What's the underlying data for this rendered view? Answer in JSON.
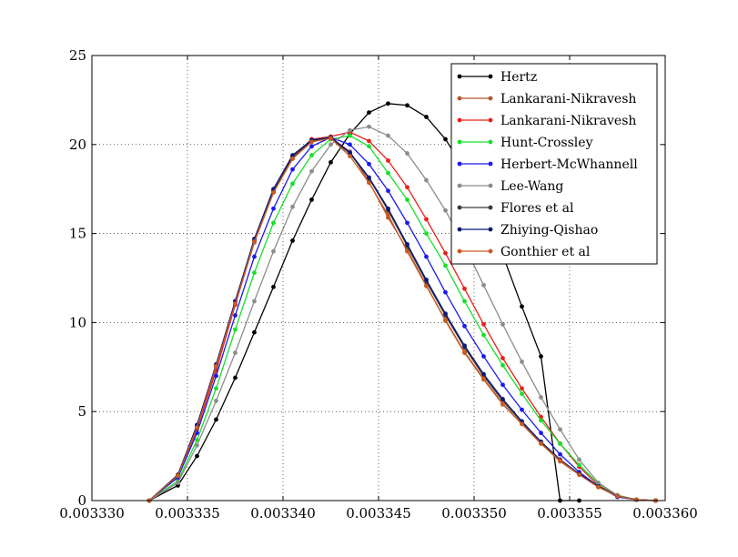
{
  "chart_data": {
    "type": "line",
    "title": "",
    "xlabel": "",
    "ylabel": "",
    "xlim": [
      0.00333,
      0.00336
    ],
    "ylim": [
      0,
      25
    ],
    "x_ticks": [
      0.00333,
      0.003335,
      0.00334,
      0.003345,
      0.00335,
      0.003355,
      0.00336
    ],
    "x_tick_labels": [
      "0.003330",
      "0.003335",
      "0.003340",
      "0.003345",
      "0.003350",
      "0.003355",
      "0.003360"
    ],
    "y_ticks": [
      0,
      5,
      10,
      15,
      20,
      25
    ],
    "y_tick_labels": [
      "0",
      "5",
      "10",
      "15",
      "20",
      "25"
    ],
    "grid": true,
    "legend_position": "top-right",
    "x": [
      0.003333,
      0.0033345,
      0.0033355,
      0.0033365,
      0.0033375,
      0.0033385,
      0.0033395,
      0.0033405,
      0.0033415,
      0.0033425,
      0.0033435,
      0.0033445,
      0.0033455,
      0.0033465,
      0.0033475,
      0.0033485,
      0.0033495,
      0.0033505,
      0.0033515,
      0.0033525,
      0.0033535,
      0.0033545,
      0.0033555,
      0.0033565,
      0.0033575,
      0.0033585,
      0.0033595
    ],
    "series": [
      {
        "name": "Hertz",
        "color": "#000000",
        "values": [
          0,
          0.85,
          2.5,
          4.55,
          6.9,
          9.45,
          12.0,
          14.6,
          16.9,
          19.0,
          20.6,
          21.8,
          22.3,
          22.2,
          21.55,
          20.3,
          18.6,
          16.4,
          13.8,
          10.9,
          8.1,
          0,
          0,
          null,
          null,
          null,
          null
        ]
      },
      {
        "name": "Lankarani-Nikravesh",
        "color": "#b5562a",
        "values": [
          0,
          1.4,
          4.1,
          7.5,
          11.0,
          14.5,
          17.3,
          19.2,
          20.2,
          20.4,
          19.6,
          17.9,
          15.9,
          14.1,
          12.1,
          10.1,
          8.3,
          6.8,
          5.4,
          4.3,
          3.2,
          2.2,
          1.45,
          0.8,
          0.25,
          0.05,
          0
        ]
      },
      {
        "name": "Lankarani-Nikravesh",
        "color": "#e8201a",
        "values": [
          0,
          1.35,
          4.0,
          7.3,
          11.0,
          14.6,
          17.4,
          19.3,
          20.3,
          20.45,
          20.7,
          20.2,
          19.1,
          17.6,
          15.8,
          13.9,
          11.9,
          9.9,
          8.0,
          6.3,
          4.7,
          3.2,
          1.9,
          0.85,
          0.25,
          0.05,
          0
        ]
      },
      {
        "name": "Hunt-Crossley",
        "color": "#16e02a",
        "values": [
          0,
          1.1,
          3.4,
          6.3,
          9.6,
          12.8,
          15.6,
          17.8,
          19.4,
          20.3,
          20.5,
          19.9,
          18.4,
          16.9,
          15.0,
          13.2,
          11.2,
          9.3,
          7.6,
          6.0,
          4.5,
          3.2,
          2.0,
          0.95,
          0.3,
          0.05,
          0
        ]
      },
      {
        "name": "Herbert-McWhannell",
        "color": "#1a1aee",
        "values": [
          0,
          1.3,
          3.8,
          7.0,
          10.4,
          13.7,
          16.4,
          18.6,
          19.9,
          20.4,
          20.0,
          18.9,
          17.4,
          15.6,
          13.7,
          11.7,
          9.8,
          8.1,
          6.5,
          5.1,
          3.8,
          2.6,
          1.6,
          0.8,
          0.2,
          0.05,
          0
        ]
      },
      {
        "name": "Lee-Wang",
        "color": "#8c8c8c",
        "values": [
          0,
          1.0,
          3.1,
          5.6,
          8.3,
          11.2,
          14.0,
          16.5,
          18.5,
          20.0,
          20.8,
          21.0,
          20.5,
          19.5,
          18.0,
          16.3,
          14.3,
          12.1,
          9.9,
          7.8,
          5.8,
          4.0,
          2.3,
          1.0,
          0.3,
          0.05,
          0
        ]
      },
      {
        "name": "Flores et al",
        "color": "#3a3a3a",
        "values": [
          0,
          1.45,
          4.2,
          7.6,
          11.2,
          14.6,
          17.4,
          19.3,
          20.2,
          20.35,
          19.5,
          18.1,
          16.3,
          14.3,
          12.3,
          10.4,
          8.6,
          7.0,
          5.6,
          4.4,
          3.3,
          2.3,
          1.5,
          0.8,
          0.25,
          0.05,
          0
        ]
      },
      {
        "name": "Zhiying-Qishao",
        "color": "#0a1a78",
        "values": [
          0,
          1.45,
          4.25,
          7.65,
          11.2,
          14.7,
          17.5,
          19.4,
          20.25,
          20.4,
          19.55,
          18.15,
          16.4,
          14.4,
          12.4,
          10.5,
          8.7,
          7.1,
          5.7,
          4.45,
          3.3,
          2.3,
          1.5,
          0.8,
          0.25,
          0.05,
          0
        ]
      },
      {
        "name": "Gonthier et al",
        "color": "#c85a20",
        "values": [
          0,
          1.4,
          4.1,
          7.55,
          11.05,
          14.55,
          17.3,
          19.2,
          20.15,
          20.35,
          19.35,
          17.85,
          16.05,
          14.0,
          12.05,
          10.15,
          8.35,
          6.85,
          5.45,
          4.3,
          3.2,
          2.25,
          1.45,
          0.75,
          0.25,
          0.05,
          0
        ]
      }
    ]
  }
}
